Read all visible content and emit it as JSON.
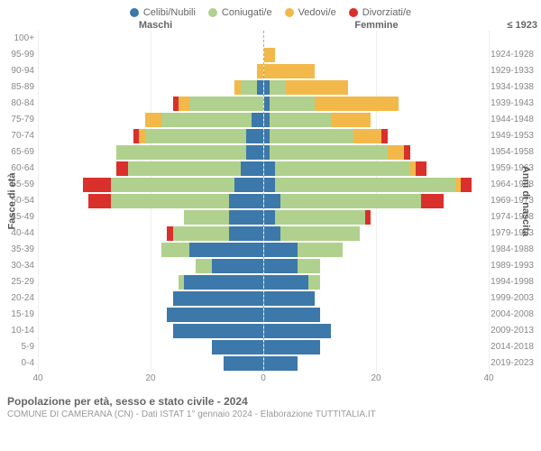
{
  "legend": [
    {
      "label": "Celibi/Nubili",
      "color": "#3c78aa"
    },
    {
      "label": "Coniugati/e",
      "color": "#b0d18d"
    },
    {
      "label": "Vedovi/e",
      "color": "#f2b94a"
    },
    {
      "label": "Divorziati/e",
      "color": "#d9302c"
    }
  ],
  "headers": {
    "male": "Maschi",
    "female": "Femmine",
    "birth_first": "≤ 1923"
  },
  "ylabels": {
    "left": "Fasce di età",
    "right": "Anni di nascita"
  },
  "xaxis": {
    "max": 40,
    "ticks": [
      40,
      20,
      0,
      20,
      40
    ]
  },
  "colors": {
    "celibi": "#3c78aa",
    "coniugati": "#b0d18d",
    "vedovi": "#f2b94a",
    "divorziati": "#d9302c",
    "grid": "#eeeeee",
    "dashed": "#aaaaaa",
    "bg": "#ffffff",
    "text_muted": "#888888",
    "text_header": "#666666"
  },
  "typography": {
    "legend_fontsize": 11,
    "tick_fontsize": 10,
    "title_fontsize": 12
  },
  "age_groups": [
    "100+",
    "95-99",
    "90-94",
    "85-89",
    "80-84",
    "75-79",
    "70-74",
    "65-69",
    "60-64",
    "55-59",
    "50-54",
    "45-49",
    "40-44",
    "35-39",
    "30-34",
    "25-29",
    "20-24",
    "15-19",
    "10-14",
    "5-9",
    "0-4"
  ],
  "birth_years": [
    "≤ 1923",
    "1924-1928",
    "1929-1933",
    "1934-1938",
    "1939-1943",
    "1944-1948",
    "1949-1953",
    "1954-1958",
    "1959-1963",
    "1964-1968",
    "1969-1973",
    "1974-1978",
    "1979-1983",
    "1984-1988",
    "1989-1993",
    "1994-1998",
    "1999-2003",
    "2004-2008",
    "2009-2013",
    "2014-2018",
    "2019-2023"
  ],
  "data": {
    "male": [
      {
        "celibi": 0,
        "coniugati": 0,
        "vedovi": 0,
        "divorziati": 0
      },
      {
        "celibi": 0,
        "coniugati": 0,
        "vedovi": 0,
        "divorziati": 0
      },
      {
        "celibi": 0,
        "coniugati": 0,
        "vedovi": 1,
        "divorziati": 0
      },
      {
        "celibi": 1,
        "coniugati": 3,
        "vedovi": 1,
        "divorziati": 0
      },
      {
        "celibi": 0,
        "coniugati": 13,
        "vedovi": 2,
        "divorziati": 1
      },
      {
        "celibi": 2,
        "coniugati": 16,
        "vedovi": 3,
        "divorziati": 0
      },
      {
        "celibi": 3,
        "coniugati": 18,
        "vedovi": 1,
        "divorziati": 1
      },
      {
        "celibi": 3,
        "coniugati": 23,
        "vedovi": 0,
        "divorziati": 0
      },
      {
        "celibi": 4,
        "coniugati": 20,
        "vedovi": 0,
        "divorziati": 2
      },
      {
        "celibi": 5,
        "coniugati": 22,
        "vedovi": 0,
        "divorziati": 5
      },
      {
        "celibi": 6,
        "coniugati": 21,
        "vedovi": 0,
        "divorziati": 4
      },
      {
        "celibi": 6,
        "coniugati": 8,
        "vedovi": 0,
        "divorziati": 0
      },
      {
        "celibi": 6,
        "coniugati": 10,
        "vedovi": 0,
        "divorziati": 1
      },
      {
        "celibi": 13,
        "coniugati": 5,
        "vedovi": 0,
        "divorziati": 0
      },
      {
        "celibi": 9,
        "coniugati": 3,
        "vedovi": 0,
        "divorziati": 0
      },
      {
        "celibi": 14,
        "coniugati": 1,
        "vedovi": 0,
        "divorziati": 0
      },
      {
        "celibi": 16,
        "coniugati": 0,
        "vedovi": 0,
        "divorziati": 0
      },
      {
        "celibi": 17,
        "coniugati": 0,
        "vedovi": 0,
        "divorziati": 0
      },
      {
        "celibi": 16,
        "coniugati": 0,
        "vedovi": 0,
        "divorziati": 0
      },
      {
        "celibi": 9,
        "coniugati": 0,
        "vedovi": 0,
        "divorziati": 0
      },
      {
        "celibi": 7,
        "coniugati": 0,
        "vedovi": 0,
        "divorziati": 0
      }
    ],
    "female": [
      {
        "celibi": 0,
        "coniugati": 0,
        "vedovi": 0,
        "divorziati": 0
      },
      {
        "celibi": 0,
        "coniugati": 0,
        "vedovi": 2,
        "divorziati": 0
      },
      {
        "celibi": 0,
        "coniugati": 0,
        "vedovi": 9,
        "divorziati": 0
      },
      {
        "celibi": 1,
        "coniugati": 3,
        "vedovi": 11,
        "divorziati": 0
      },
      {
        "celibi": 1,
        "coniugati": 8,
        "vedovi": 15,
        "divorziati": 0
      },
      {
        "celibi": 1,
        "coniugati": 11,
        "vedovi": 7,
        "divorziati": 0
      },
      {
        "celibi": 1,
        "coniugati": 15,
        "vedovi": 5,
        "divorziati": 1
      },
      {
        "celibi": 1,
        "coniugati": 21,
        "vedovi": 3,
        "divorziati": 1
      },
      {
        "celibi": 2,
        "coniugati": 24,
        "vedovi": 1,
        "divorziati": 2
      },
      {
        "celibi": 2,
        "coniugati": 32,
        "vedovi": 1,
        "divorziati": 2
      },
      {
        "celibi": 3,
        "coniugati": 25,
        "vedovi": 0,
        "divorziati": 4
      },
      {
        "celibi": 2,
        "coniugati": 16,
        "vedovi": 0,
        "divorziati": 1
      },
      {
        "celibi": 3,
        "coniugati": 14,
        "vedovi": 0,
        "divorziati": 0
      },
      {
        "celibi": 6,
        "coniugati": 8,
        "vedovi": 0,
        "divorziati": 0
      },
      {
        "celibi": 6,
        "coniugati": 4,
        "vedovi": 0,
        "divorziati": 0
      },
      {
        "celibi": 8,
        "coniugati": 2,
        "vedovi": 0,
        "divorziati": 0
      },
      {
        "celibi": 9,
        "coniugati": 0,
        "vedovi": 0,
        "divorziati": 0
      },
      {
        "celibi": 10,
        "coniugati": 0,
        "vedovi": 0,
        "divorziati": 0
      },
      {
        "celibi": 12,
        "coniugati": 0,
        "vedovi": 0,
        "divorziati": 0
      },
      {
        "celibi": 10,
        "coniugati": 0,
        "vedovi": 0,
        "divorziati": 0
      },
      {
        "celibi": 6,
        "coniugati": 0,
        "vedovi": 0,
        "divorziati": 0
      }
    ]
  },
  "footer": {
    "title": "Popolazione per età, sesso e stato civile - 2024",
    "sub": "COMUNE DI CAMERANA (CN) - Dati ISTAT 1° gennaio 2024 - Elaborazione TUTTITALIA.IT"
  }
}
